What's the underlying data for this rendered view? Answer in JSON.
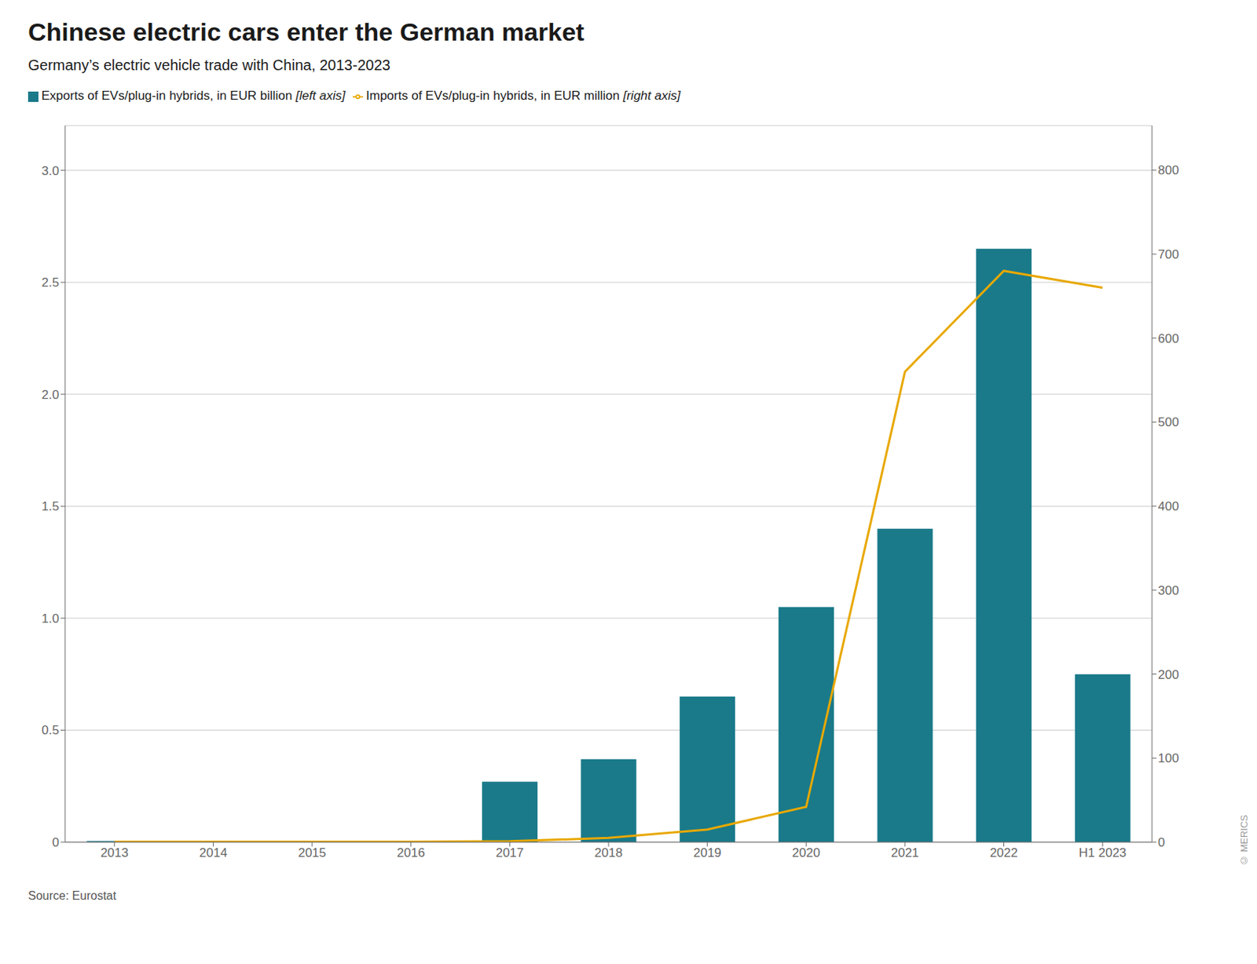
{
  "chart_data": {
    "type": "bar",
    "title": "Chinese electric cars enter the German market",
    "subtitle": "Germany’s electric vehicle trade with China, 2013-2023",
    "categories": [
      "2013",
      "2014",
      "2015",
      "2016",
      "2017",
      "2018",
      "2019",
      "2020",
      "2021",
      "2022",
      "H1 2023"
    ],
    "series": [
      {
        "name": "Exports of EVs/plug-in hybrids, in EUR billion [left axis]",
        "type": "bar",
        "color": "#1a7a8a",
        "axis": "y",
        "values": [
          0.005,
          0.005,
          0.005,
          0.005,
          0.27,
          0.37,
          0.65,
          1.05,
          1.4,
          2.65,
          0.75
        ]
      },
      {
        "name": "Imports of EVs/plug-in hybrids, in EUR million [right axis]",
        "type": "line",
        "color": "#e8a800",
        "axis": "y2",
        "values": [
          0.5,
          0.5,
          0.5,
          0.5,
          1.0,
          5.0,
          15.0,
          42.0,
          560.0,
          680.0,
          660.0
        ]
      }
    ],
    "ylim": [
      0,
      3.2
    ],
    "yticks": [
      0,
      0.5,
      {
        "value": 1.0,
        "label": "1.0"
      },
      1.5,
      {
        "value": 2.0,
        "label": "2.0"
      },
      2.5,
      {
        "value": 3.0,
        "label": "3.0"
      }
    ],
    "y2lim": [
      0,
      853
    ],
    "y2ticks": [
      0,
      100,
      200,
      300,
      400,
      500,
      600,
      700,
      800
    ],
    "grid": true,
    "legend": "top",
    "annotations": [
      "Source: Eurostat",
      "© MERICS"
    ]
  }
}
